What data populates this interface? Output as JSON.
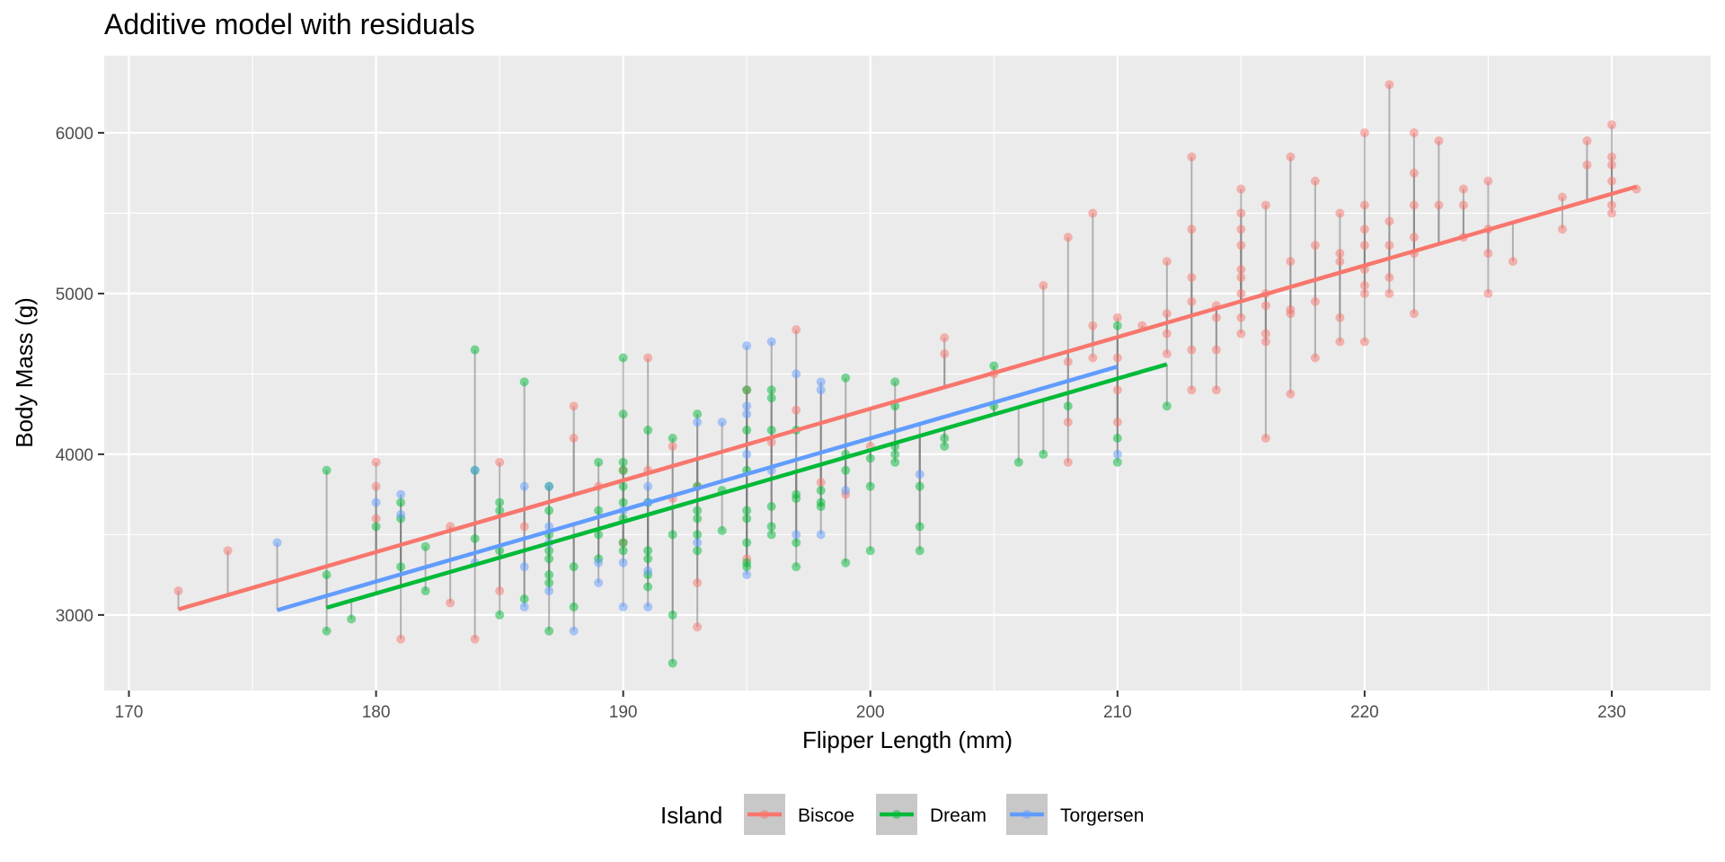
{
  "chart_data": {
    "type": "scatter",
    "title": "Additive model with residuals",
    "xlabel": "Flipper Length (mm)",
    "ylabel": "Body Mass (g)",
    "xlim": [
      169,
      234
    ],
    "ylim": [
      2530,
      6480
    ],
    "xticks": [
      170,
      180,
      190,
      200,
      210,
      220,
      230
    ],
    "yticks": [
      3000,
      4000,
      5000,
      6000
    ],
    "grid": true,
    "legend": {
      "title": "Island",
      "position": "bottom"
    },
    "point_alpha": 0.5,
    "residual_segments": true,
    "series": [
      {
        "name": "Biscoe",
        "color": "#F8766D",
        "fit_line": {
          "x": [
            172,
            231
          ],
          "y": [
            3035,
            5665
          ]
        },
        "points": [
          [
            172,
            3150
          ],
          [
            174,
            3400
          ],
          [
            180,
            3800
          ],
          [
            180,
            3950
          ],
          [
            180,
            3600
          ],
          [
            181,
            2850
          ],
          [
            183,
            3550
          ],
          [
            183,
            3075
          ],
          [
            184,
            2850
          ],
          [
            185,
            3950
          ],
          [
            185,
            3150
          ],
          [
            186,
            3550
          ],
          [
            188,
            4300
          ],
          [
            188,
            4100
          ],
          [
            189,
            3800
          ],
          [
            190,
            3900
          ],
          [
            190,
            3450
          ],
          [
            191,
            4600
          ],
          [
            191,
            3900
          ],
          [
            192,
            4050
          ],
          [
            192,
            3725
          ],
          [
            193,
            2925
          ],
          [
            193,
            3200
          ],
          [
            193,
            3800
          ],
          [
            195,
            3350
          ],
          [
            195,
            4400
          ],
          [
            196,
            4075
          ],
          [
            197,
            4775
          ],
          [
            197,
            4275
          ],
          [
            198,
            3825
          ],
          [
            199,
            3750
          ],
          [
            200,
            4050
          ],
          [
            203,
            4725
          ],
          [
            203,
            4625
          ],
          [
            205,
            4500
          ],
          [
            207,
            5050
          ],
          [
            208,
            5350
          ],
          [
            208,
            4575
          ],
          [
            208,
            4200
          ],
          [
            208,
            3950
          ],
          [
            209,
            5500
          ],
          [
            209,
            4800
          ],
          [
            209,
            4600
          ],
          [
            210,
            4850
          ],
          [
            210,
            4600
          ],
          [
            210,
            4400
          ],
          [
            210,
            4200
          ],
          [
            211,
            4800
          ],
          [
            212,
            5200
          ],
          [
            212,
            4875
          ],
          [
            212,
            4750
          ],
          [
            212,
            4625
          ],
          [
            213,
            5850
          ],
          [
            213,
            5400
          ],
          [
            213,
            5100
          ],
          [
            213,
            4950
          ],
          [
            213,
            4650
          ],
          [
            213,
            4400
          ],
          [
            214,
            4925
          ],
          [
            214,
            4850
          ],
          [
            214,
            4650
          ],
          [
            214,
            4400
          ],
          [
            215,
            5650
          ],
          [
            215,
            5500
          ],
          [
            215,
            5400
          ],
          [
            215,
            5300
          ],
          [
            215,
            5150
          ],
          [
            215,
            5100
          ],
          [
            215,
            5000
          ],
          [
            215,
            4850
          ],
          [
            215,
            4750
          ],
          [
            216,
            5550
          ],
          [
            216,
            5000
          ],
          [
            216,
            4925
          ],
          [
            216,
            4750
          ],
          [
            216,
            4700
          ],
          [
            216,
            4100
          ],
          [
            217,
            5850
          ],
          [
            217,
            5200
          ],
          [
            217,
            4900
          ],
          [
            217,
            4875
          ],
          [
            217,
            4375
          ],
          [
            218,
            5700
          ],
          [
            218,
            5300
          ],
          [
            218,
            4950
          ],
          [
            218,
            4600
          ],
          [
            219,
            5500
          ],
          [
            219,
            5250
          ],
          [
            219,
            5200
          ],
          [
            219,
            4850
          ],
          [
            219,
            4700
          ],
          [
            220,
            6000
          ],
          [
            220,
            5550
          ],
          [
            220,
            5400
          ],
          [
            220,
            5300
          ],
          [
            220,
            5150
          ],
          [
            220,
            5050
          ],
          [
            220,
            5000
          ],
          [
            220,
            4700
          ],
          [
            221,
            6300
          ],
          [
            221,
            5450
          ],
          [
            221,
            5300
          ],
          [
            221,
            5100
          ],
          [
            221,
            5000
          ],
          [
            222,
            6000
          ],
          [
            222,
            5750
          ],
          [
            222,
            5550
          ],
          [
            222,
            5350
          ],
          [
            222,
            5250
          ],
          [
            222,
            4875
          ],
          [
            223,
            5950
          ],
          [
            223,
            5550
          ],
          [
            224,
            5650
          ],
          [
            224,
            5550
          ],
          [
            224,
            5350
          ],
          [
            225,
            5700
          ],
          [
            225,
            5400
          ],
          [
            225,
            5250
          ],
          [
            225,
            5000
          ],
          [
            226,
            5200
          ],
          [
            228,
            5600
          ],
          [
            228,
            5400
          ],
          [
            229,
            5950
          ],
          [
            229,
            5800
          ],
          [
            230,
            6050
          ],
          [
            230,
            5850
          ],
          [
            230,
            5800
          ],
          [
            230,
            5700
          ],
          [
            230,
            5550
          ],
          [
            230,
            5500
          ],
          [
            231,
            5650
          ]
        ]
      },
      {
        "name": "Dream",
        "color": "#00BA38",
        "fit_line": {
          "x": [
            178,
            212
          ],
          "y": [
            3045,
            4560
          ]
        },
        "points": [
          [
            178,
            3900
          ],
          [
            178,
            3250
          ],
          [
            178,
            2900
          ],
          [
            179,
            2975
          ],
          [
            180,
            3550
          ],
          [
            181,
            3700
          ],
          [
            181,
            3600
          ],
          [
            181,
            3300
          ],
          [
            182,
            3425
          ],
          [
            182,
            3150
          ],
          [
            184,
            4650
          ],
          [
            184,
            3900
          ],
          [
            184,
            3475
          ],
          [
            185,
            3700
          ],
          [
            185,
            3650
          ],
          [
            185,
            3400
          ],
          [
            185,
            3000
          ],
          [
            186,
            4450
          ],
          [
            186,
            3100
          ],
          [
            187,
            3800
          ],
          [
            187,
            3650
          ],
          [
            187,
            3500
          ],
          [
            187,
            3400
          ],
          [
            187,
            3350
          ],
          [
            187,
            3250
          ],
          [
            187,
            3200
          ],
          [
            187,
            2900
          ],
          [
            188,
            3300
          ],
          [
            188,
            3050
          ],
          [
            189,
            3950
          ],
          [
            189,
            3650
          ],
          [
            189,
            3500
          ],
          [
            189,
            3350
          ],
          [
            190,
            4600
          ],
          [
            190,
            4250
          ],
          [
            190,
            3950
          ],
          [
            190,
            3900
          ],
          [
            190,
            3800
          ],
          [
            190,
            3700
          ],
          [
            190,
            3600
          ],
          [
            190,
            3450
          ],
          [
            190,
            3400
          ],
          [
            191,
            4150
          ],
          [
            191,
            3700
          ],
          [
            191,
            3400
          ],
          [
            191,
            3350
          ],
          [
            191,
            3250
          ],
          [
            191,
            3175
          ],
          [
            192,
            4100
          ],
          [
            192,
            3500
          ],
          [
            192,
            3000
          ],
          [
            192,
            2700
          ],
          [
            193,
            4250
          ],
          [
            193,
            3800
          ],
          [
            193,
            3650
          ],
          [
            193,
            3600
          ],
          [
            193,
            3500
          ],
          [
            193,
            3400
          ],
          [
            194,
            3775
          ],
          [
            194,
            3525
          ],
          [
            195,
            4400
          ],
          [
            195,
            4150
          ],
          [
            195,
            3900
          ],
          [
            195,
            3650
          ],
          [
            195,
            3600
          ],
          [
            195,
            3450
          ],
          [
            195,
            3325
          ],
          [
            195,
            3300
          ],
          [
            196,
            4400
          ],
          [
            196,
            4350
          ],
          [
            196,
            4150
          ],
          [
            196,
            3675
          ],
          [
            196,
            3550
          ],
          [
            196,
            3500
          ],
          [
            197,
            4150
          ],
          [
            197,
            3750
          ],
          [
            197,
            3725
          ],
          [
            197,
            3450
          ],
          [
            197,
            3300
          ],
          [
            198,
            3775
          ],
          [
            198,
            3700
          ],
          [
            198,
            3675
          ],
          [
            199,
            4475
          ],
          [
            199,
            4000
          ],
          [
            199,
            3900
          ],
          [
            199,
            3325
          ],
          [
            200,
            3975
          ],
          [
            200,
            3800
          ],
          [
            200,
            3400
          ],
          [
            201,
            4450
          ],
          [
            201,
            4300
          ],
          [
            201,
            4050
          ],
          [
            201,
            4000
          ],
          [
            201,
            3950
          ],
          [
            202,
            3800
          ],
          [
            202,
            3550
          ],
          [
            202,
            3400
          ],
          [
            203,
            4100
          ],
          [
            203,
            4050
          ],
          [
            205,
            4550
          ],
          [
            205,
            4300
          ],
          [
            206,
            3950
          ],
          [
            207,
            4000
          ],
          [
            208,
            4300
          ],
          [
            210,
            4800
          ],
          [
            210,
            4100
          ],
          [
            210,
            3950
          ],
          [
            212,
            4300
          ]
        ]
      },
      {
        "name": "Torgersen",
        "color": "#619CFF",
        "fit_line": {
          "x": [
            176,
            210
          ],
          "y": [
            3030,
            4545
          ]
        },
        "points": [
          [
            176,
            3450
          ],
          [
            180,
            3700
          ],
          [
            181,
            3750
          ],
          [
            181,
            3625
          ],
          [
            184,
            3900
          ],
          [
            184,
            3325
          ],
          [
            186,
            3800
          ],
          [
            186,
            3300
          ],
          [
            186,
            3050
          ],
          [
            187,
            3800
          ],
          [
            187,
            3550
          ],
          [
            187,
            3450
          ],
          [
            187,
            3150
          ],
          [
            188,
            2900
          ],
          [
            189,
            3325
          ],
          [
            189,
            3200
          ],
          [
            190,
            3650
          ],
          [
            190,
            3325
          ],
          [
            190,
            3050
          ],
          [
            191,
            3800
          ],
          [
            191,
            3700
          ],
          [
            191,
            3275
          ],
          [
            191,
            3050
          ],
          [
            193,
            4200
          ],
          [
            193,
            3450
          ],
          [
            194,
            4200
          ],
          [
            195,
            4675
          ],
          [
            195,
            4300
          ],
          [
            195,
            4250
          ],
          [
            195,
            4000
          ],
          [
            195,
            3250
          ],
          [
            196,
            4700
          ],
          [
            196,
            3900
          ],
          [
            197,
            4500
          ],
          [
            197,
            3500
          ],
          [
            198,
            4450
          ],
          [
            198,
            4400
          ],
          [
            198,
            3500
          ],
          [
            199,
            3775
          ],
          [
            202,
            3875
          ],
          [
            210,
            4000
          ]
        ]
      }
    ]
  }
}
